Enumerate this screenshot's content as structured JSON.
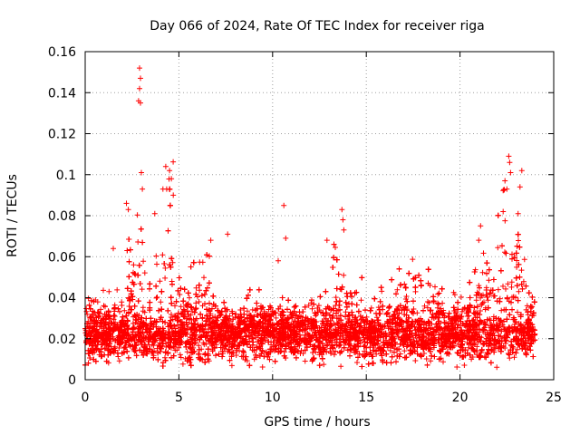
{
  "chart_data": {
    "type": "scatter",
    "title": "Day 066 of 2024, Rate Of TEC Index for receiver riga",
    "xlabel": "GPS time / hours",
    "ylabel": "ROTI / TECUs",
    "xlim": [
      0,
      25
    ],
    "ylim": [
      0,
      0.16
    ],
    "x_ticks": [
      0,
      5,
      10,
      15,
      20,
      25
    ],
    "x_tick_labels": [
      "0",
      "5",
      "10",
      "15",
      "20",
      "25"
    ],
    "y_ticks": [
      0,
      0.02,
      0.04,
      0.06,
      0.08,
      0.1,
      0.12,
      0.14,
      0.16
    ],
    "y_tick_labels": [
      "0",
      "0.02",
      "0.04",
      "0.06",
      "0.08",
      "0.1",
      "0.12",
      "0.14",
      "0.16"
    ],
    "grid": true,
    "marker": "+",
    "series_color": "#ff0000",
    "data_range": {
      "x_min": 0,
      "x_max": 24,
      "typical_y": [
        0.01,
        0.04
      ]
    },
    "notable_points": [
      {
        "x": 2.9,
        "y": 0.152
      },
      {
        "x": 2.95,
        "y": 0.147
      },
      {
        "x": 2.9,
        "y": 0.142
      },
      {
        "x": 2.85,
        "y": 0.136
      },
      {
        "x": 2.95,
        "y": 0.135
      },
      {
        "x": 3.0,
        "y": 0.101
      },
      {
        "x": 3.05,
        "y": 0.093
      },
      {
        "x": 4.3,
        "y": 0.104
      },
      {
        "x": 4.5,
        "y": 0.102
      },
      {
        "x": 4.6,
        "y": 0.098
      },
      {
        "x": 4.15,
        "y": 0.093
      },
      {
        "x": 4.7,
        "y": 0.09
      },
      {
        "x": 2.2,
        "y": 0.086
      },
      {
        "x": 2.3,
        "y": 0.083
      },
      {
        "x": 10.6,
        "y": 0.085
      },
      {
        "x": 10.7,
        "y": 0.069
      },
      {
        "x": 13.7,
        "y": 0.083
      },
      {
        "x": 13.75,
        "y": 0.078
      },
      {
        "x": 13.8,
        "y": 0.073
      },
      {
        "x": 22.6,
        "y": 0.109
      },
      {
        "x": 22.65,
        "y": 0.106
      },
      {
        "x": 22.7,
        "y": 0.101
      },
      {
        "x": 23.3,
        "y": 0.102
      },
      {
        "x": 22.4,
        "y": 0.097
      },
      {
        "x": 22.5,
        "y": 0.093
      },
      {
        "x": 23.2,
        "y": 0.094
      },
      {
        "x": 22.3,
        "y": 0.082
      },
      {
        "x": 23.1,
        "y": 0.081
      },
      {
        "x": 21.1,
        "y": 0.075
      },
      {
        "x": 21.0,
        "y": 0.068
      },
      {
        "x": 1.5,
        "y": 0.064
      },
      {
        "x": 6.7,
        "y": 0.068
      },
      {
        "x": 7.6,
        "y": 0.071
      },
      {
        "x": 12.9,
        "y": 0.068
      },
      {
        "x": 10.3,
        "y": 0.058
      },
      {
        "x": 18.4,
        "y": 0.046
      }
    ]
  }
}
